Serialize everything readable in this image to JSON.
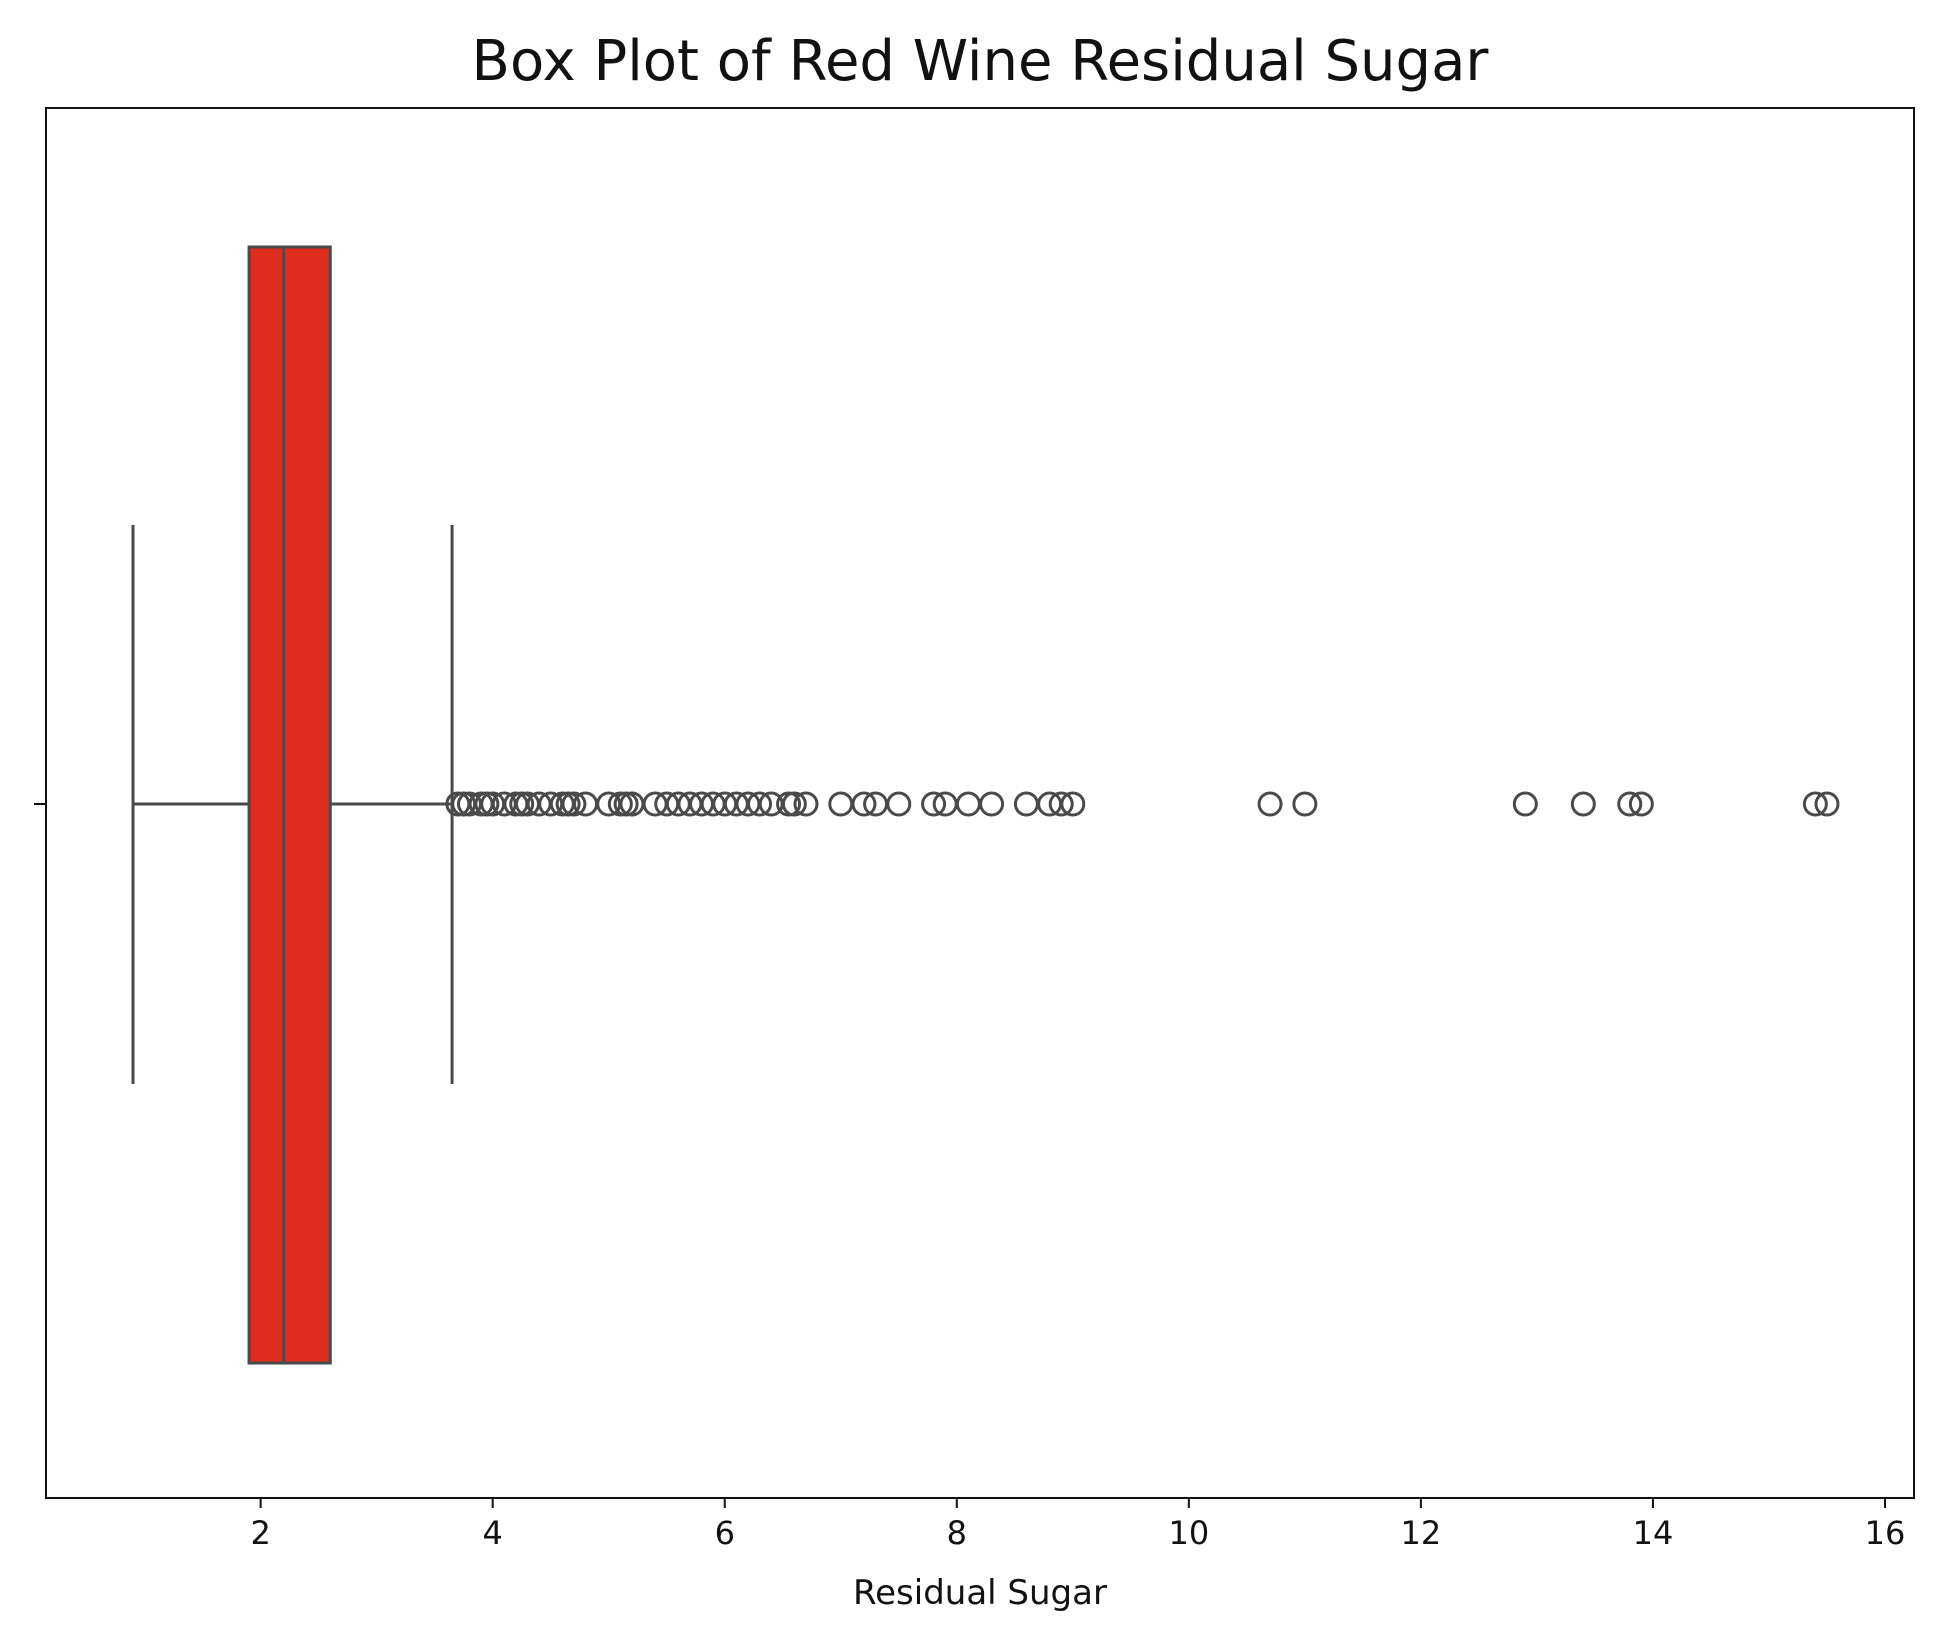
{
  "chart_data": {
    "type": "box",
    "title": "Box Plot of Red Wine Residual Sugar",
    "xlabel": "Residual Sugar",
    "ylabel": "",
    "orientation": "horizontal",
    "xlim": [
      0.15,
      16.25
    ],
    "xticks": [
      2,
      4,
      6,
      8,
      10,
      12,
      14,
      16
    ],
    "box_color": "#DE2D1F",
    "line_color": "#4a4a4a",
    "grid": false,
    "box": {
      "whisker_low": 0.9,
      "q1": 1.9,
      "median": 2.2,
      "q3": 2.6,
      "whisker_high": 3.65
    },
    "outliers": [
      3.7,
      3.75,
      3.8,
      3.9,
      3.95,
      4.0,
      4.1,
      4.2,
      4.25,
      4.3,
      4.4,
      4.5,
      4.6,
      4.65,
      4.7,
      4.8,
      5.0,
      5.1,
      5.15,
      5.2,
      5.4,
      5.5,
      5.6,
      5.7,
      5.8,
      5.9,
      6.0,
      6.1,
      6.2,
      6.3,
      6.4,
      6.55,
      6.6,
      6.7,
      7.0,
      7.2,
      7.3,
      7.5,
      7.8,
      7.9,
      8.1,
      8.3,
      8.6,
      8.8,
      8.9,
      9.0,
      10.7,
      11.0,
      12.9,
      13.4,
      13.8,
      13.9,
      15.4,
      15.5
    ]
  }
}
